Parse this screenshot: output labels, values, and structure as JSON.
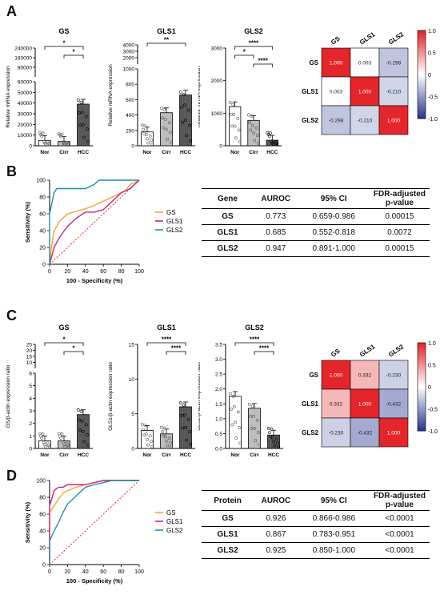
{
  "colors": {
    "heat_pos": "#e4262b",
    "heat_neg": "#2b3990",
    "heat_mid": "#ffffff",
    "roc_gs": "#f4a236",
    "roc_gls1": "#c8247c",
    "roc_gls2": "#1f8fa8",
    "diag": "#e8262d",
    "bar_nor": "#ffffff",
    "bar_cirr": "#bdbdbd",
    "bar_hcc": "#595959"
  },
  "panels": {
    "A": "A",
    "B": "B",
    "C": "C",
    "D": "D"
  },
  "chart_data": [
    {
      "id": "A-GS",
      "type": "bar",
      "title": "GS",
      "ylabel": "Relative mRNA expression",
      "categories": [
        "Nor",
        "Cirr",
        "HCC"
      ],
      "values": [
        5000,
        4000,
        39000
      ],
      "yticks_lower": [
        "0",
        "10000",
        "20000",
        "30000",
        "40000",
        "50000",
        "60000"
      ],
      "yticks_upper": [
        "80000",
        "160000",
        "240000"
      ],
      "ylim_lower": [
        0,
        60000
      ],
      "broken_axis": true,
      "significance": [
        "*",
        "*"
      ]
    },
    {
      "id": "A-GLS1",
      "type": "bar",
      "title": "GLS1",
      "ylabel": "Relative mRNA expression",
      "categories": [
        "Nor",
        "Cirr",
        "HCC"
      ],
      "values": [
        180,
        430,
        660
      ],
      "yticks_lower": [
        "0",
        "200",
        "400",
        "600",
        "800",
        "1000"
      ],
      "yticks_upper": [
        "2000",
        "3000",
        "4000"
      ],
      "ylim_lower": [
        0,
        1000
      ],
      "broken_axis": true,
      "significance": [
        "**"
      ]
    },
    {
      "id": "A-GLS2",
      "type": "bar",
      "title": "GLS2",
      "ylabel": "Relative mRNA expression",
      "categories": [
        "Nor",
        "Cirr",
        "HCC"
      ],
      "values": [
        1200,
        780,
        170
      ],
      "yticks": [
        "0",
        "1000",
        "2000",
        "3000"
      ],
      "ylim": [
        0,
        3000
      ],
      "significance": [
        "****",
        "*",
        "****"
      ]
    },
    {
      "id": "A-heatmap",
      "type": "heatmap",
      "labels": [
        "GS",
        "GLS1",
        "GLS2"
      ],
      "values": [
        [
          1.0,
          0.003,
          -0.298
        ],
        [
          0.003,
          1.0,
          -0.21
        ],
        [
          -0.298,
          -0.21,
          1.0
        ]
      ],
      "cell_text": [
        [
          "1.000",
          "0.003",
          "-0.298"
        ],
        [
          "0.003",
          "1.000",
          "-0.210"
        ],
        [
          "-0.298",
          "-0.210",
          "1.000"
        ]
      ],
      "scale_ticks": [
        "1.0",
        "0.5",
        "0",
        "-0.5",
        "-1.0"
      ],
      "range": [
        -1,
        1
      ]
    },
    {
      "id": "B-roc",
      "type": "line",
      "xlabel": "100 - Specificity (%)",
      "ylabel": "Sensitivity (%)",
      "xticks": [
        "0",
        "20",
        "40",
        "60",
        "80",
        "100"
      ],
      "yticks": [
        "0",
        "20",
        "40",
        "60",
        "80",
        "100"
      ],
      "xlim": [
        0,
        100
      ],
      "ylim": [
        0,
        100
      ],
      "series": [
        {
          "name": "GS",
          "x": [
            0,
            2,
            5,
            8,
            10,
            15,
            20,
            30,
            40,
            50,
            60,
            70,
            80,
            85,
            90,
            100
          ],
          "y": [
            0,
            20,
            40,
            45,
            50,
            55,
            60,
            63,
            66,
            70,
            75,
            80,
            85,
            88,
            95,
            100
          ]
        },
        {
          "name": "GLS1",
          "x": [
            0,
            5,
            10,
            15,
            20,
            30,
            40,
            50,
            60,
            70,
            80,
            90,
            100
          ],
          "y": [
            0,
            20,
            30,
            38,
            45,
            55,
            62,
            62,
            65,
            75,
            85,
            90,
            100
          ]
        },
        {
          "name": "GLS2",
          "x": [
            0,
            0,
            3,
            5,
            8,
            20,
            40,
            50,
            55,
            60,
            80,
            100
          ],
          "y": [
            0,
            60,
            75,
            85,
            90,
            90,
            90,
            95,
            100,
            100,
            100,
            100
          ]
        }
      ]
    },
    {
      "id": "C-GS",
      "type": "bar",
      "title": "GS",
      "ylabel": "GS/β-actin expression ratio",
      "categories": [
        "Nor",
        "Cirr",
        "HCC"
      ],
      "values": [
        0.6,
        0.6,
        2.7
      ],
      "yticks_lower": [
        "0",
        "1",
        "2",
        "3",
        "4",
        "5",
        "6"
      ],
      "yticks_upper": [
        "10",
        "15",
        "20",
        "25"
      ],
      "ylim_lower": [
        0,
        6
      ],
      "broken_axis": true,
      "significance": [
        "*",
        "*"
      ]
    },
    {
      "id": "C-GLS1",
      "type": "bar",
      "title": "GLS1",
      "ylabel": "GLS1/β-actin expression ratio",
      "categories": [
        "Nor",
        "Cirr",
        "HCC"
      ],
      "values": [
        2.6,
        2.1,
        6.0
      ],
      "yticks": [
        "0",
        "5",
        "10",
        "15"
      ],
      "ylim": [
        0,
        15
      ],
      "significance": [
        "****",
        "****"
      ]
    },
    {
      "id": "C-GLS2",
      "type": "bar",
      "title": "GLS2",
      "ylabel": "GLS2/β-actin expression ratio",
      "categories": [
        "Nor",
        "Cirr",
        "HCC"
      ],
      "values": [
        1.75,
        1.35,
        0.45
      ],
      "yticks": [
        "0.0",
        "0.5",
        "1.0",
        "1.5",
        "2.0",
        "2.5",
        "3.0",
        "3.5"
      ],
      "ylim": [
        0,
        3.5
      ],
      "significance": [
        "****",
        "****"
      ]
    },
    {
      "id": "C-heatmap",
      "type": "heatmap",
      "labels": [
        "GS",
        "GLS1",
        "GLS2"
      ],
      "values": [
        [
          1.0,
          0.332,
          -0.23
        ],
        [
          0.332,
          1.0,
          -0.432
        ],
        [
          -0.23,
          -0.432,
          1.0
        ]
      ],
      "cell_text": [
        [
          "1.000",
          "0.332",
          "-0.230"
        ],
        [
          "0.332",
          "1.000",
          "-0.432"
        ],
        [
          "-0.230",
          "-0.432",
          "1.000"
        ]
      ],
      "scale_ticks": [
        "1.0",
        "0.5",
        "0",
        "-0.5",
        "-1.0"
      ],
      "range": [
        -1,
        1
      ]
    },
    {
      "id": "D-roc",
      "type": "line",
      "xlabel": "100 - Specificity (%)",
      "ylabel": "Sensitivity (%)",
      "xticks": [
        "0",
        "20",
        "40",
        "60",
        "80",
        "100"
      ],
      "yticks": [
        "0",
        "20",
        "40",
        "60",
        "80",
        "100"
      ],
      "xlim": [
        0,
        100
      ],
      "ylim": [
        0,
        100
      ],
      "series": [
        {
          "name": "GS",
          "x": [
            0,
            0,
            5,
            10,
            15,
            20,
            30,
            40,
            60,
            80,
            100
          ],
          "y": [
            0,
            62,
            70,
            78,
            85,
            88,
            92,
            95,
            100,
            100,
            100
          ]
        },
        {
          "name": "GLS1",
          "x": [
            0,
            0,
            3,
            5,
            10,
            15,
            20,
            40,
            60,
            80,
            100
          ],
          "y": [
            0,
            70,
            80,
            88,
            92,
            92,
            95,
            95,
            100,
            100,
            100
          ]
        },
        {
          "name": "GLS2",
          "x": [
            0,
            0,
            5,
            10,
            15,
            20,
            30,
            40,
            50,
            70,
            100
          ],
          "y": [
            0,
            28,
            40,
            50,
            62,
            72,
            82,
            92,
            95,
            100,
            100
          ]
        }
      ]
    }
  ],
  "table_B": {
    "headers": [
      "Gene",
      "AUROC",
      "95% CI",
      "FDR-adjusted p-value"
    ],
    "rows": [
      [
        "GS",
        "0.773",
        "0.659-0.986",
        "0.00015"
      ],
      [
        "GLS1",
        "0.685",
        "0.552-0.818",
        "0.0072"
      ],
      [
        "GLS2",
        "0.947",
        "0.891-1.000",
        "0.00015"
      ]
    ]
  },
  "table_D": {
    "headers": [
      "Protein",
      "AUROC",
      "95% CI",
      "FDR-adjusted p-value"
    ],
    "rows": [
      [
        "GS",
        "0.926",
        "0.866-0.986",
        "<0.0001"
      ],
      [
        "GLS1",
        "0.867",
        "0.783-0.951",
        "<0.0001"
      ],
      [
        "GLS2",
        "0.925",
        "0.850-1.000",
        "<0.0001"
      ]
    ]
  }
}
